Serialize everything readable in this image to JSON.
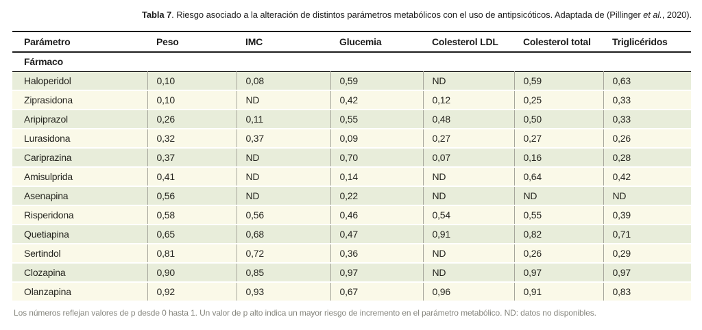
{
  "caption": {
    "bold": "Tabla 7",
    "text_mid": ". Riesgo asociado a la alteración de distintos parámetros metabólicos con el uso de antipsicóticos. Adaptada de (Pillinger ",
    "italic": "et al.",
    "text_end": ", 2020)."
  },
  "table": {
    "columns": [
      "Parámetro",
      "Peso",
      "IMC",
      "Glucemia",
      "Colesterol LDL",
      "Colesterol total",
      "Triglicéridos"
    ],
    "group_label": "Fármaco",
    "rows": [
      {
        "name": "Haloperidol",
        "values": [
          "0,10",
          "0,08",
          "0,59",
          "ND",
          "0,59",
          "0,63"
        ]
      },
      {
        "name": "Ziprasidona",
        "values": [
          "0,10",
          "ND",
          "0,42",
          "0,12",
          "0,25",
          "0,33"
        ]
      },
      {
        "name": "Aripiprazol",
        "values": [
          "0,26",
          "0,11",
          "0,55",
          "0,48",
          "0,50",
          "0,33"
        ]
      },
      {
        "name": "Lurasidona",
        "values": [
          "0,32",
          "0,37",
          "0,09",
          "0,27",
          "0,27",
          "0,26"
        ]
      },
      {
        "name": "Cariprazina",
        "values": [
          "0,37",
          "ND",
          "0,70",
          "0,07",
          "0,16",
          "0,28"
        ]
      },
      {
        "name": "Amisulprida",
        "values": [
          "0,41",
          "ND",
          "0,14",
          "ND",
          "0,64",
          "0,42"
        ]
      },
      {
        "name": "Asenapina",
        "values": [
          "0,56",
          "ND",
          "0,22",
          "ND",
          "ND",
          "ND"
        ]
      },
      {
        "name": "Risperidona",
        "values": [
          "0,58",
          "0,56",
          "0,46",
          "0,54",
          "0,55",
          "0,39"
        ]
      },
      {
        "name": "Quetiapina",
        "values": [
          "0,65",
          "0,68",
          "0,47",
          "0,91",
          "0,82",
          "0,71"
        ]
      },
      {
        "name": "Sertindol",
        "values": [
          "0,81",
          "0,72",
          "0,36",
          "ND",
          "0,26",
          "0,29"
        ]
      },
      {
        "name": "Clozapina",
        "values": [
          "0,90",
          "0,85",
          "0,97",
          "ND",
          "0,97",
          "0,97"
        ]
      },
      {
        "name": "Olanzapina",
        "values": [
          "0,92",
          "0,93",
          "0,67",
          "0,96",
          "0,91",
          "0,83"
        ]
      }
    ]
  },
  "footnote": "Los números reflejan valores de p desde 0 hasta 1. Un valor de p alto indica un mayor riesgo de incremento en el parámetro metabólico. ND: datos no disponibles.",
  "colors": {
    "row_alt_green": "#e8edda",
    "row_alt_cream": "#faf9e8",
    "border_dark": "#1c1c1c",
    "border_vertical_gray": "#a6a69b",
    "footnote_gray": "#85857d"
  }
}
